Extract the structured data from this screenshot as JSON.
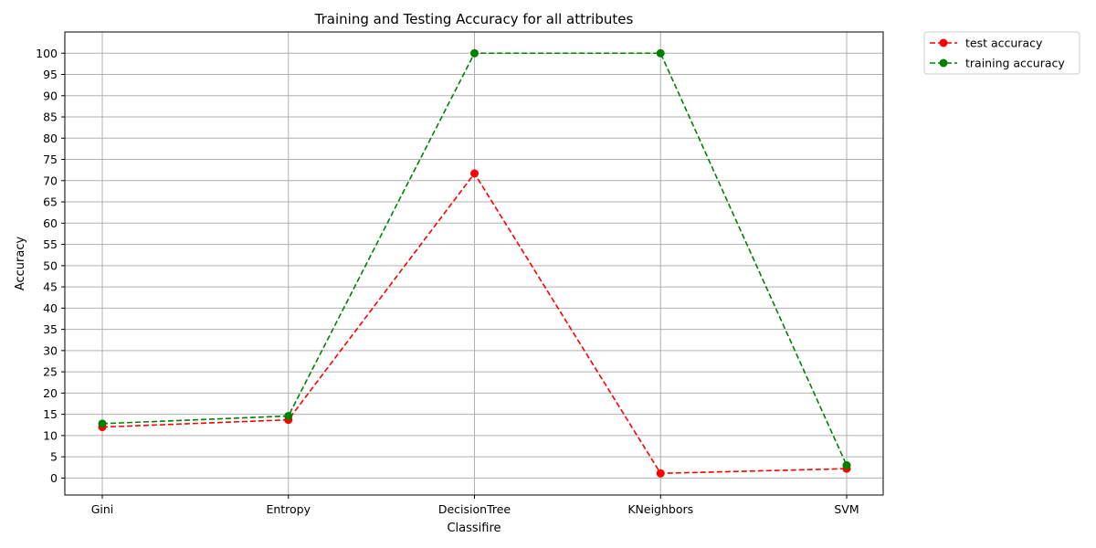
{
  "chart_data": {
    "type": "line",
    "title": "Training and Testing Accuracy for all attributes",
    "xlabel": "Classifire",
    "ylabel": "Accuracy",
    "categories": [
      "Gini",
      "Entropy",
      "DecisionTree",
      "KNeighbors",
      "SVM"
    ],
    "ylim": [
      -4,
      105
    ],
    "yticks": [
      0,
      5,
      10,
      15,
      20,
      25,
      30,
      35,
      40,
      45,
      50,
      55,
      60,
      65,
      70,
      75,
      80,
      85,
      90,
      95,
      100
    ],
    "grid": true,
    "legend_position": "outside-top-right",
    "series": [
      {
        "name": "test accuracy",
        "values": [
          12.0,
          13.7,
          71.7,
          1.1,
          2.2
        ],
        "color": "#ff0000",
        "line_style": "dashed",
        "marker": "circle"
      },
      {
        "name": "training accuracy",
        "values": [
          12.8,
          14.6,
          100.0,
          100.0,
          3.0
        ],
        "color": "#008000",
        "line_style": "dashed",
        "marker": "circle"
      }
    ]
  }
}
